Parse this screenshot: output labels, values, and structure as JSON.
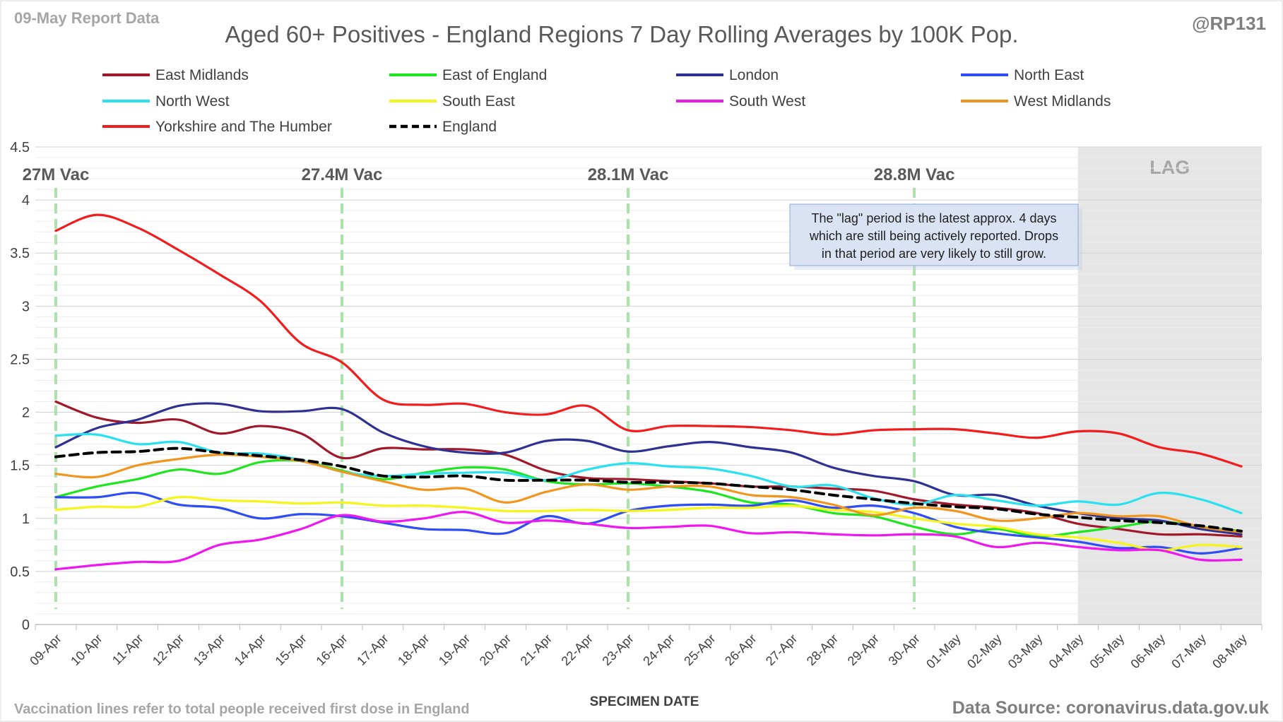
{
  "header": {
    "report_date": "09-May Report Data",
    "handle": "@RP131"
  },
  "footer": {
    "vaccination_note": "Vaccination lines refer to total people received first dose in England",
    "data_source": "Data Source: coronavirus.data.gov.uk"
  },
  "lag_note": {
    "lines": [
      "The \"lag\" period is the latest approx. 4 days",
      "which are still being actively reported. Drops",
      "in that period are very likely to still grow."
    ]
  },
  "chart_data": {
    "type": "line",
    "title": "Aged 60+ Positives - England Regions 7 Day Rolling Averages by 100K Pop.",
    "xlabel": "SPECIMEN DATE",
    "ylabel": "",
    "ylim": [
      0,
      4.5
    ],
    "yticks": [
      0,
      0.5,
      1,
      1.5,
      2,
      2.5,
      3,
      3.5,
      4,
      4.5
    ],
    "grid": true,
    "legend_position": "top",
    "categories": [
      "09-Apr",
      "10-Apr",
      "11-Apr",
      "12-Apr",
      "13-Apr",
      "14-Apr",
      "15-Apr",
      "16-Apr",
      "17-Apr",
      "18-Apr",
      "19-Apr",
      "20-Apr",
      "21-Apr",
      "22-Apr",
      "23-Apr",
      "24-Apr",
      "25-Apr",
      "26-Apr",
      "27-Apr",
      "28-Apr",
      "29-Apr",
      "30-Apr",
      "01-May",
      "02-May",
      "03-May",
      "04-May",
      "05-May",
      "06-May",
      "07-May",
      "08-May"
    ],
    "lag_region": {
      "label": "LAG",
      "start": "04-May",
      "end": "08-May",
      "color": "#e6e6e6"
    },
    "vaccination_markers": [
      {
        "date": "09-Apr",
        "label": "27M Vac"
      },
      {
        "date": "16-Apr",
        "label": "27.4M Vac"
      },
      {
        "date": "23-Apr",
        "label": "28.1M Vac"
      },
      {
        "date": "30-Apr",
        "label": "28.8M Vac"
      }
    ],
    "series": [
      {
        "name": "East Midlands",
        "color": "#a0182a",
        "dash": false,
        "values": [
          2.1,
          1.95,
          1.9,
          1.93,
          1.8,
          1.87,
          1.8,
          1.57,
          1.66,
          1.65,
          1.65,
          1.6,
          1.45,
          1.38,
          1.37,
          1.35,
          1.33,
          1.3,
          1.3,
          1.28,
          1.26,
          1.18,
          1.13,
          1.1,
          1.05,
          0.95,
          0.9,
          0.85,
          0.85,
          0.83
        ]
      },
      {
        "name": "East of England",
        "color": "#1ee61e",
        "dash": false,
        "values": [
          1.2,
          1.3,
          1.37,
          1.46,
          1.42,
          1.53,
          1.54,
          1.45,
          1.37,
          1.43,
          1.48,
          1.46,
          1.35,
          1.32,
          1.33,
          1.3,
          1.25,
          1.15,
          1.13,
          1.05,
          1.02,
          0.92,
          0.85,
          0.9,
          0.83,
          0.87,
          0.92,
          0.97,
          0.92,
          0.88
        ]
      },
      {
        "name": "London",
        "color": "#2e3192",
        "dash": false,
        "values": [
          1.67,
          1.85,
          1.93,
          2.06,
          2.08,
          2.01,
          2.01,
          2.03,
          1.81,
          1.68,
          1.62,
          1.62,
          1.73,
          1.73,
          1.63,
          1.68,
          1.72,
          1.67,
          1.62,
          1.48,
          1.4,
          1.35,
          1.22,
          1.22,
          1.12,
          1.05,
          1.0,
          0.98,
          0.9,
          0.85
        ]
      },
      {
        "name": "North East",
        "color": "#2f4cf5",
        "dash": false,
        "values": [
          1.2,
          1.2,
          1.24,
          1.13,
          1.1,
          1.0,
          1.04,
          1.02,
          0.96,
          0.9,
          0.89,
          0.86,
          1.02,
          0.95,
          1.07,
          1.12,
          1.13,
          1.12,
          1.17,
          1.1,
          1.12,
          1.05,
          0.92,
          0.86,
          0.82,
          0.78,
          0.72,
          0.73,
          0.67,
          0.72
        ]
      },
      {
        "name": "North West",
        "color": "#29e1ef",
        "dash": false,
        "values": [
          1.78,
          1.79,
          1.7,
          1.72,
          1.62,
          1.61,
          1.55,
          1.44,
          1.4,
          1.42,
          1.43,
          1.43,
          1.36,
          1.46,
          1.52,
          1.49,
          1.47,
          1.4,
          1.3,
          1.31,
          1.19,
          1.13,
          1.22,
          1.17,
          1.12,
          1.16,
          1.13,
          1.24,
          1.18,
          1.05
        ]
      },
      {
        "name": "South East",
        "color": "#f5f51c",
        "dash": false,
        "values": [
          1.08,
          1.11,
          1.11,
          1.2,
          1.17,
          1.16,
          1.14,
          1.15,
          1.12,
          1.12,
          1.1,
          1.07,
          1.07,
          1.08,
          1.07,
          1.08,
          1.1,
          1.1,
          1.12,
          1.08,
          1.06,
          1.0,
          0.95,
          0.92,
          0.85,
          0.82,
          0.77,
          0.7,
          0.75,
          0.73
        ]
      },
      {
        "name": "South West",
        "color": "#f016f0",
        "dash": false,
        "values": [
          0.52,
          0.56,
          0.59,
          0.6,
          0.75,
          0.8,
          0.9,
          1.03,
          0.97,
          1.0,
          1.06,
          0.96,
          0.98,
          0.95,
          0.91,
          0.92,
          0.93,
          0.86,
          0.87,
          0.85,
          0.84,
          0.85,
          0.83,
          0.73,
          0.77,
          0.73,
          0.7,
          0.7,
          0.61,
          0.61
        ]
      },
      {
        "name": "West Midlands",
        "color": "#f0961e",
        "dash": false,
        "values": [
          1.42,
          1.39,
          1.5,
          1.56,
          1.6,
          1.58,
          1.54,
          1.44,
          1.35,
          1.27,
          1.28,
          1.15,
          1.25,
          1.32,
          1.27,
          1.3,
          1.3,
          1.22,
          1.2,
          1.13,
          1.03,
          1.1,
          1.07,
          0.98,
          1.0,
          1.05,
          1.02,
          1.02,
          0.92,
          0.87
        ]
      },
      {
        "name": "Yorkshire and The Humber",
        "color": "#f21c1c",
        "dash": false,
        "values": [
          3.71,
          3.86,
          3.74,
          3.53,
          3.3,
          3.05,
          2.65,
          2.47,
          2.12,
          2.07,
          2.08,
          2.0,
          1.98,
          2.06,
          1.83,
          1.87,
          1.87,
          1.86,
          1.83,
          1.79,
          1.83,
          1.84,
          1.84,
          1.8,
          1.76,
          1.82,
          1.8,
          1.67,
          1.61,
          1.49
        ]
      },
      {
        "name": "England",
        "color": "#000000",
        "dash": true,
        "values": [
          1.58,
          1.62,
          1.63,
          1.66,
          1.62,
          1.59,
          1.55,
          1.49,
          1.4,
          1.39,
          1.4,
          1.36,
          1.36,
          1.36,
          1.34,
          1.34,
          1.33,
          1.3,
          1.27,
          1.22,
          1.18,
          1.14,
          1.11,
          1.09,
          1.04,
          1.01,
          0.98,
          0.96,
          0.93,
          0.88
        ]
      }
    ]
  }
}
